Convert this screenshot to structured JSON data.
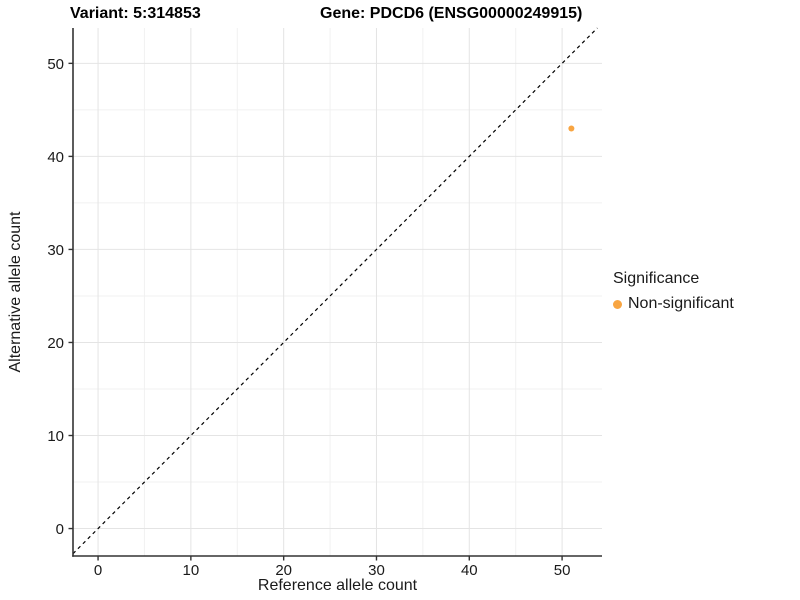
{
  "figure": {
    "title_left": "Variant: 5:314853",
    "title_right": "Gene: PDCD6 (ENSG00000249915)"
  },
  "chart_data": {
    "type": "scatter",
    "xlabel": "Reference allele count",
    "ylabel": "Alternative allele count",
    "xlim": [
      -2.7,
      54.3
    ],
    "ylim": [
      -2.95,
      53.8
    ],
    "x_ticks": [
      0,
      10,
      20,
      30,
      40,
      50
    ],
    "y_ticks": [
      0,
      10,
      20,
      30,
      40,
      50
    ],
    "x_minor_ticks": [
      5,
      15,
      25,
      35,
      45
    ],
    "y_minor_ticks": [
      5,
      15,
      25,
      35,
      45
    ],
    "grid": true,
    "points": [
      {
        "x": 51,
        "y": 43,
        "series": "Non-significant",
        "color": "#F8A542"
      }
    ],
    "identity_line": {
      "slope": 1,
      "intercept": 0,
      "style": "dashed",
      "color": "#000000"
    },
    "legend": {
      "title": "Significance",
      "position": "right",
      "entries": [
        {
          "label": "Non-significant",
          "color": "#F8A542",
          "marker": "circle"
        }
      ]
    }
  },
  "colors": {
    "background": "#FFFFFF",
    "grid_major": "#E4E4E4",
    "grid_minor": "#F1F1F1",
    "axis_line": "#333333",
    "tick_mark": "#333333",
    "tick_text": "#1a1a1a",
    "point_orange": "#F8A542"
  }
}
